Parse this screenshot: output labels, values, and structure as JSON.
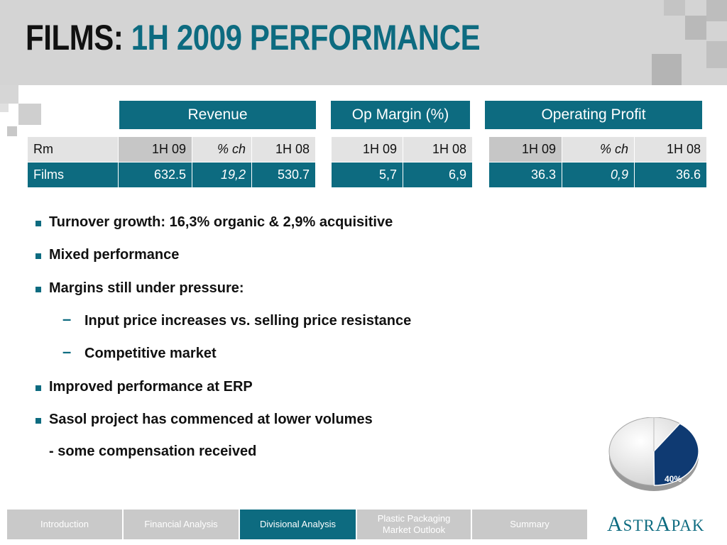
{
  "title": {
    "part1": "FILMS:",
    "part2": "1H 2009 PERFORMANCE"
  },
  "groups": {
    "revenue": "Revenue",
    "op_margin": "Op Margin (%)",
    "operating_profit": "Operating Profit"
  },
  "table": {
    "header": {
      "label": "Rm",
      "rev_1h09": "1H 09",
      "rev_ch": "% ch",
      "rev_1h08": "1H 08",
      "om_1h09": "1H 09",
      "om_1h08": "1H 08",
      "op_1h09": "1H 09",
      "op_ch": "% ch",
      "op_1h08": "1H 08"
    },
    "row": {
      "label": "Films",
      "rev_1h09": "632.5",
      "rev_ch": "19,2",
      "rev_1h08": "530.7",
      "om_1h09": "5,7",
      "om_1h08": "6,9",
      "op_1h09": "36.3",
      "op_ch": "0,9",
      "op_1h08": "36.6"
    }
  },
  "bullets": [
    "Turnover growth: 16,3% organic & 2,9% acquisitive",
    "Mixed performance",
    "Margins still under pressure:",
    "Input price increases vs. selling price resistance",
    "Competitive market",
    "Improved performance at ERP",
    "Sasol project has commenced at lower volumes",
    "- some compensation received"
  ],
  "sub_dash": "–",
  "pie": {
    "label": "40%",
    "value": 40,
    "colors": {
      "slice": "#0f3a72",
      "rest": "#e4e4e4"
    }
  },
  "nav": {
    "introduction": "Introduction",
    "financial_analysis": "Financial Analysis",
    "divisional_analysis": "Divisional Analysis",
    "plastic_line1": "Plastic Packaging",
    "plastic_line2": "Market Outlook",
    "summary": "Summary"
  },
  "logo": {
    "a": "A",
    "str": "STR",
    "a2": "A",
    "pak": "PAK"
  },
  "colors": {
    "accent": "#0d6b80",
    "header_bg": "#d4d4d4"
  }
}
